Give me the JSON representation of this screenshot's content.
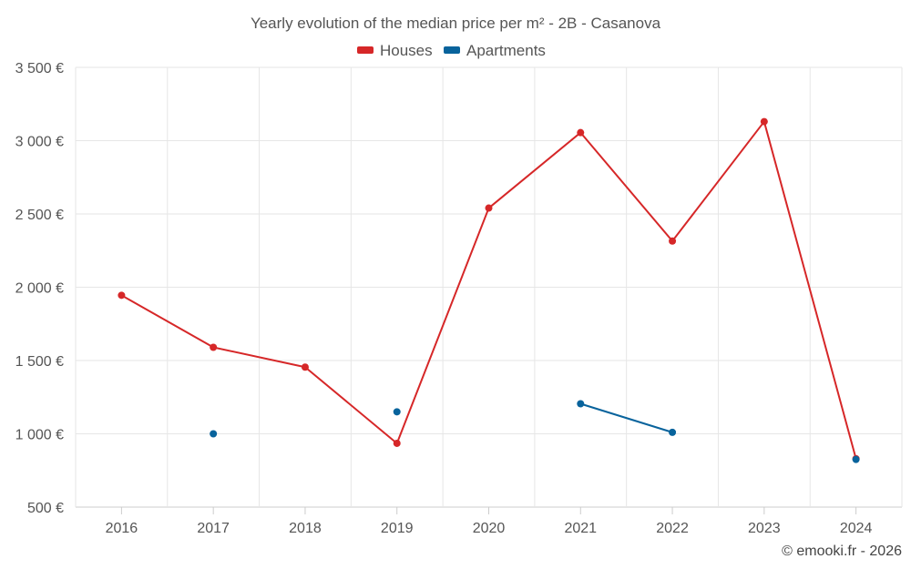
{
  "chart_data": {
    "type": "line",
    "title": "Yearly evolution of the median price per m² - 2B - Casanova",
    "categories": [
      "2016",
      "2017",
      "2018",
      "2019",
      "2020",
      "2021",
      "2022",
      "2023",
      "2024"
    ],
    "ylim": [
      500,
      3500
    ],
    "yticks": [
      500,
      1000,
      1500,
      2000,
      2500,
      3000,
      3500
    ],
    "ytick_labels": [
      "500 €",
      "1 000 €",
      "1 500 €",
      "2 000 €",
      "2 500 €",
      "3 000 €",
      "3 500 €"
    ],
    "legend_position": "top-center",
    "grid": true,
    "series": [
      {
        "name": "Houses",
        "color": "#d62728",
        "values": [
          1945,
          1590,
          1455,
          935,
          2540,
          3055,
          2315,
          3130,
          830
        ]
      },
      {
        "name": "Apartments",
        "color": "#08639c",
        "values": [
          null,
          1000,
          null,
          1150,
          null,
          1205,
          1010,
          null,
          825
        ]
      }
    ],
    "credit": "© emooki.fr - 2026"
  }
}
